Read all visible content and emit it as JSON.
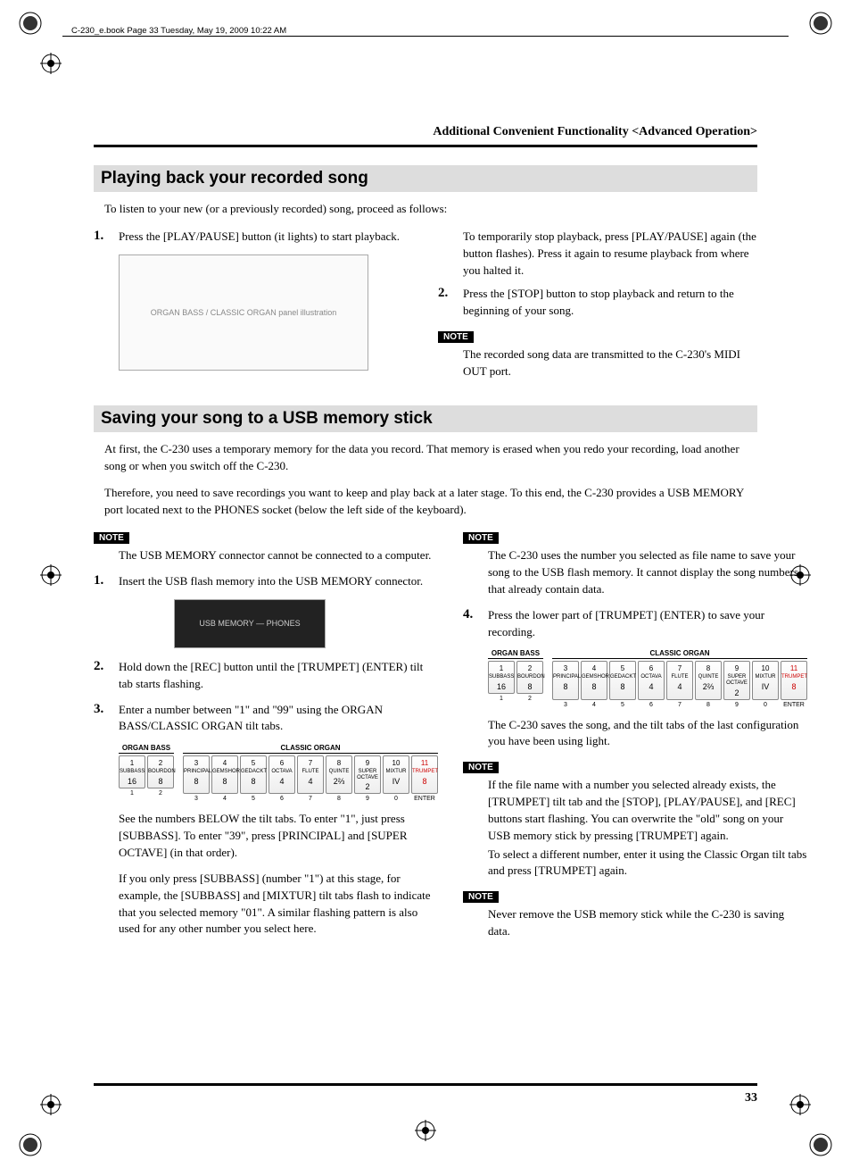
{
  "header_info": "C-230_e.book  Page 33  Tuesday, May 19, 2009  10:22 AM",
  "breadcrumb": "Additional Convenient Functionality <Advanced Operation>",
  "page_number": "33",
  "colors": {
    "section_bg": "#dddddd",
    "note_bg": "#000000",
    "note_fg": "#ffffff",
    "rule": "#000000"
  },
  "section1": {
    "title": "Playing back your recorded song",
    "intro": "To listen to your new (or a previously recorded) song, proceed as follows:",
    "left": {
      "step1_num": "1.",
      "step1": "Press the [PLAY/PAUSE] button (it lights) to start playback.",
      "fig_label": "ORGAN BASS / CLASSIC ORGAN panel illustration"
    },
    "right": {
      "para1": "To temporarily stop playback, press [PLAY/PAUSE] again (the button flashes). Press it again to resume playback from where you halted it.",
      "step2_num": "2.",
      "step2": "Press the [STOP] button to stop playback and return to the beginning of your song.",
      "note_label": "NOTE",
      "note1": "The recorded song data are transmitted to the C-230's MIDI OUT port."
    }
  },
  "section2": {
    "title": "Saving your song to a USB memory stick",
    "intro1": "At first, the C-230 uses a temporary memory for the data you record. That memory is erased when you redo your recording, load another song or when you switch off the C-230.",
    "intro2": "Therefore, you need to save recordings you want to keep and play back at a later stage. To this end, the C-230 provides a USB MEMORY port located next to the PHONES socket (below the left side of the keyboard).",
    "left": {
      "note_label": "NOTE",
      "note1": "The USB MEMORY connector cannot be connected to a computer.",
      "step1_num": "1.",
      "step1": "Insert the USB flash memory into the USB MEMORY connector.",
      "fig_usb_label": "USB MEMORY — PHONES",
      "step2_num": "2.",
      "step2": "Hold down the [REC] button until the [TRUMPET] (ENTER) tilt tab starts flashing.",
      "step3_num": "3.",
      "step3": "Enter a number between \"1\" and \"99\" using the ORGAN BASS/CLASSIC ORGAN tilt tabs.",
      "para_a": "See the numbers BELOW the tilt tabs. To enter \"1\", just press [SUBBASS]. To enter \"39\", press [PRINCIPAL] and [SUPER OCTAVE] (in that order).",
      "para_b": "If you only press [SUBBASS] (number \"1\") at this stage, for example, the [SUBBASS] and [MIXTUR] tilt tabs flash to indicate that you selected memory \"01\". A similar flashing pattern is also used for any other number you select here."
    },
    "right": {
      "note_label": "NOTE",
      "note1": "The C-230 uses the number you selected as file name to save your song to the USB flash memory. It cannot display the song numbers that already contain data.",
      "step4_num": "4.",
      "step4": "Press the lower part of [TRUMPET] (ENTER) to save your recording.",
      "para_c": "The C-230 saves the song, and the tilt tabs of the last configuration you have been using light.",
      "note2": "If the file name with a number you selected already exists, the [TRUMPET] tilt tab and the [STOP], [PLAY/PAUSE], and [REC] buttons start flashing. You can overwrite the \"old\" song on your USB memory stick by pressing [TRUMPET] again.",
      "note2b": "To select a different number, enter it using the Classic Organ tilt tabs and press [TRUMPET] again.",
      "note3": "Never remove the USB memory stick while the C-230 is saving data."
    }
  },
  "tilt_tabs": {
    "organ_bass_header": "ORGAN BASS",
    "classic_organ_header": "CLASSIC ORGAN",
    "enter_label": "ENTER",
    "bass": [
      {
        "n": "1",
        "label": "SUBBASS",
        "v": "16"
      },
      {
        "n": "2",
        "label": "BOURDON",
        "v": "8"
      }
    ],
    "classic": [
      {
        "n": "3",
        "label": "PRINCIPAL",
        "v": "8"
      },
      {
        "n": "4",
        "label": "GEMSHORN",
        "v": "8"
      },
      {
        "n": "5",
        "label": "GEDACKT",
        "v": "8"
      },
      {
        "n": "6",
        "label": "OCTAVA",
        "v": "4"
      },
      {
        "n": "7",
        "label": "FLUTE",
        "v": "4"
      },
      {
        "n": "8",
        "label": "QUINTE",
        "v": "2⅔"
      },
      {
        "n": "9",
        "label": "SUPER OCTAVE",
        "v": "2"
      },
      {
        "n": "10",
        "label": "MIXTUR",
        "v": "IV"
      },
      {
        "n": "11",
        "label": "TRUMPET",
        "v": "8",
        "red": true
      }
    ],
    "under_bass": [
      "1",
      "2"
    ],
    "under_classic": [
      "3",
      "4",
      "5",
      "6",
      "7",
      "8",
      "9",
      "0",
      "ENTER"
    ]
  }
}
